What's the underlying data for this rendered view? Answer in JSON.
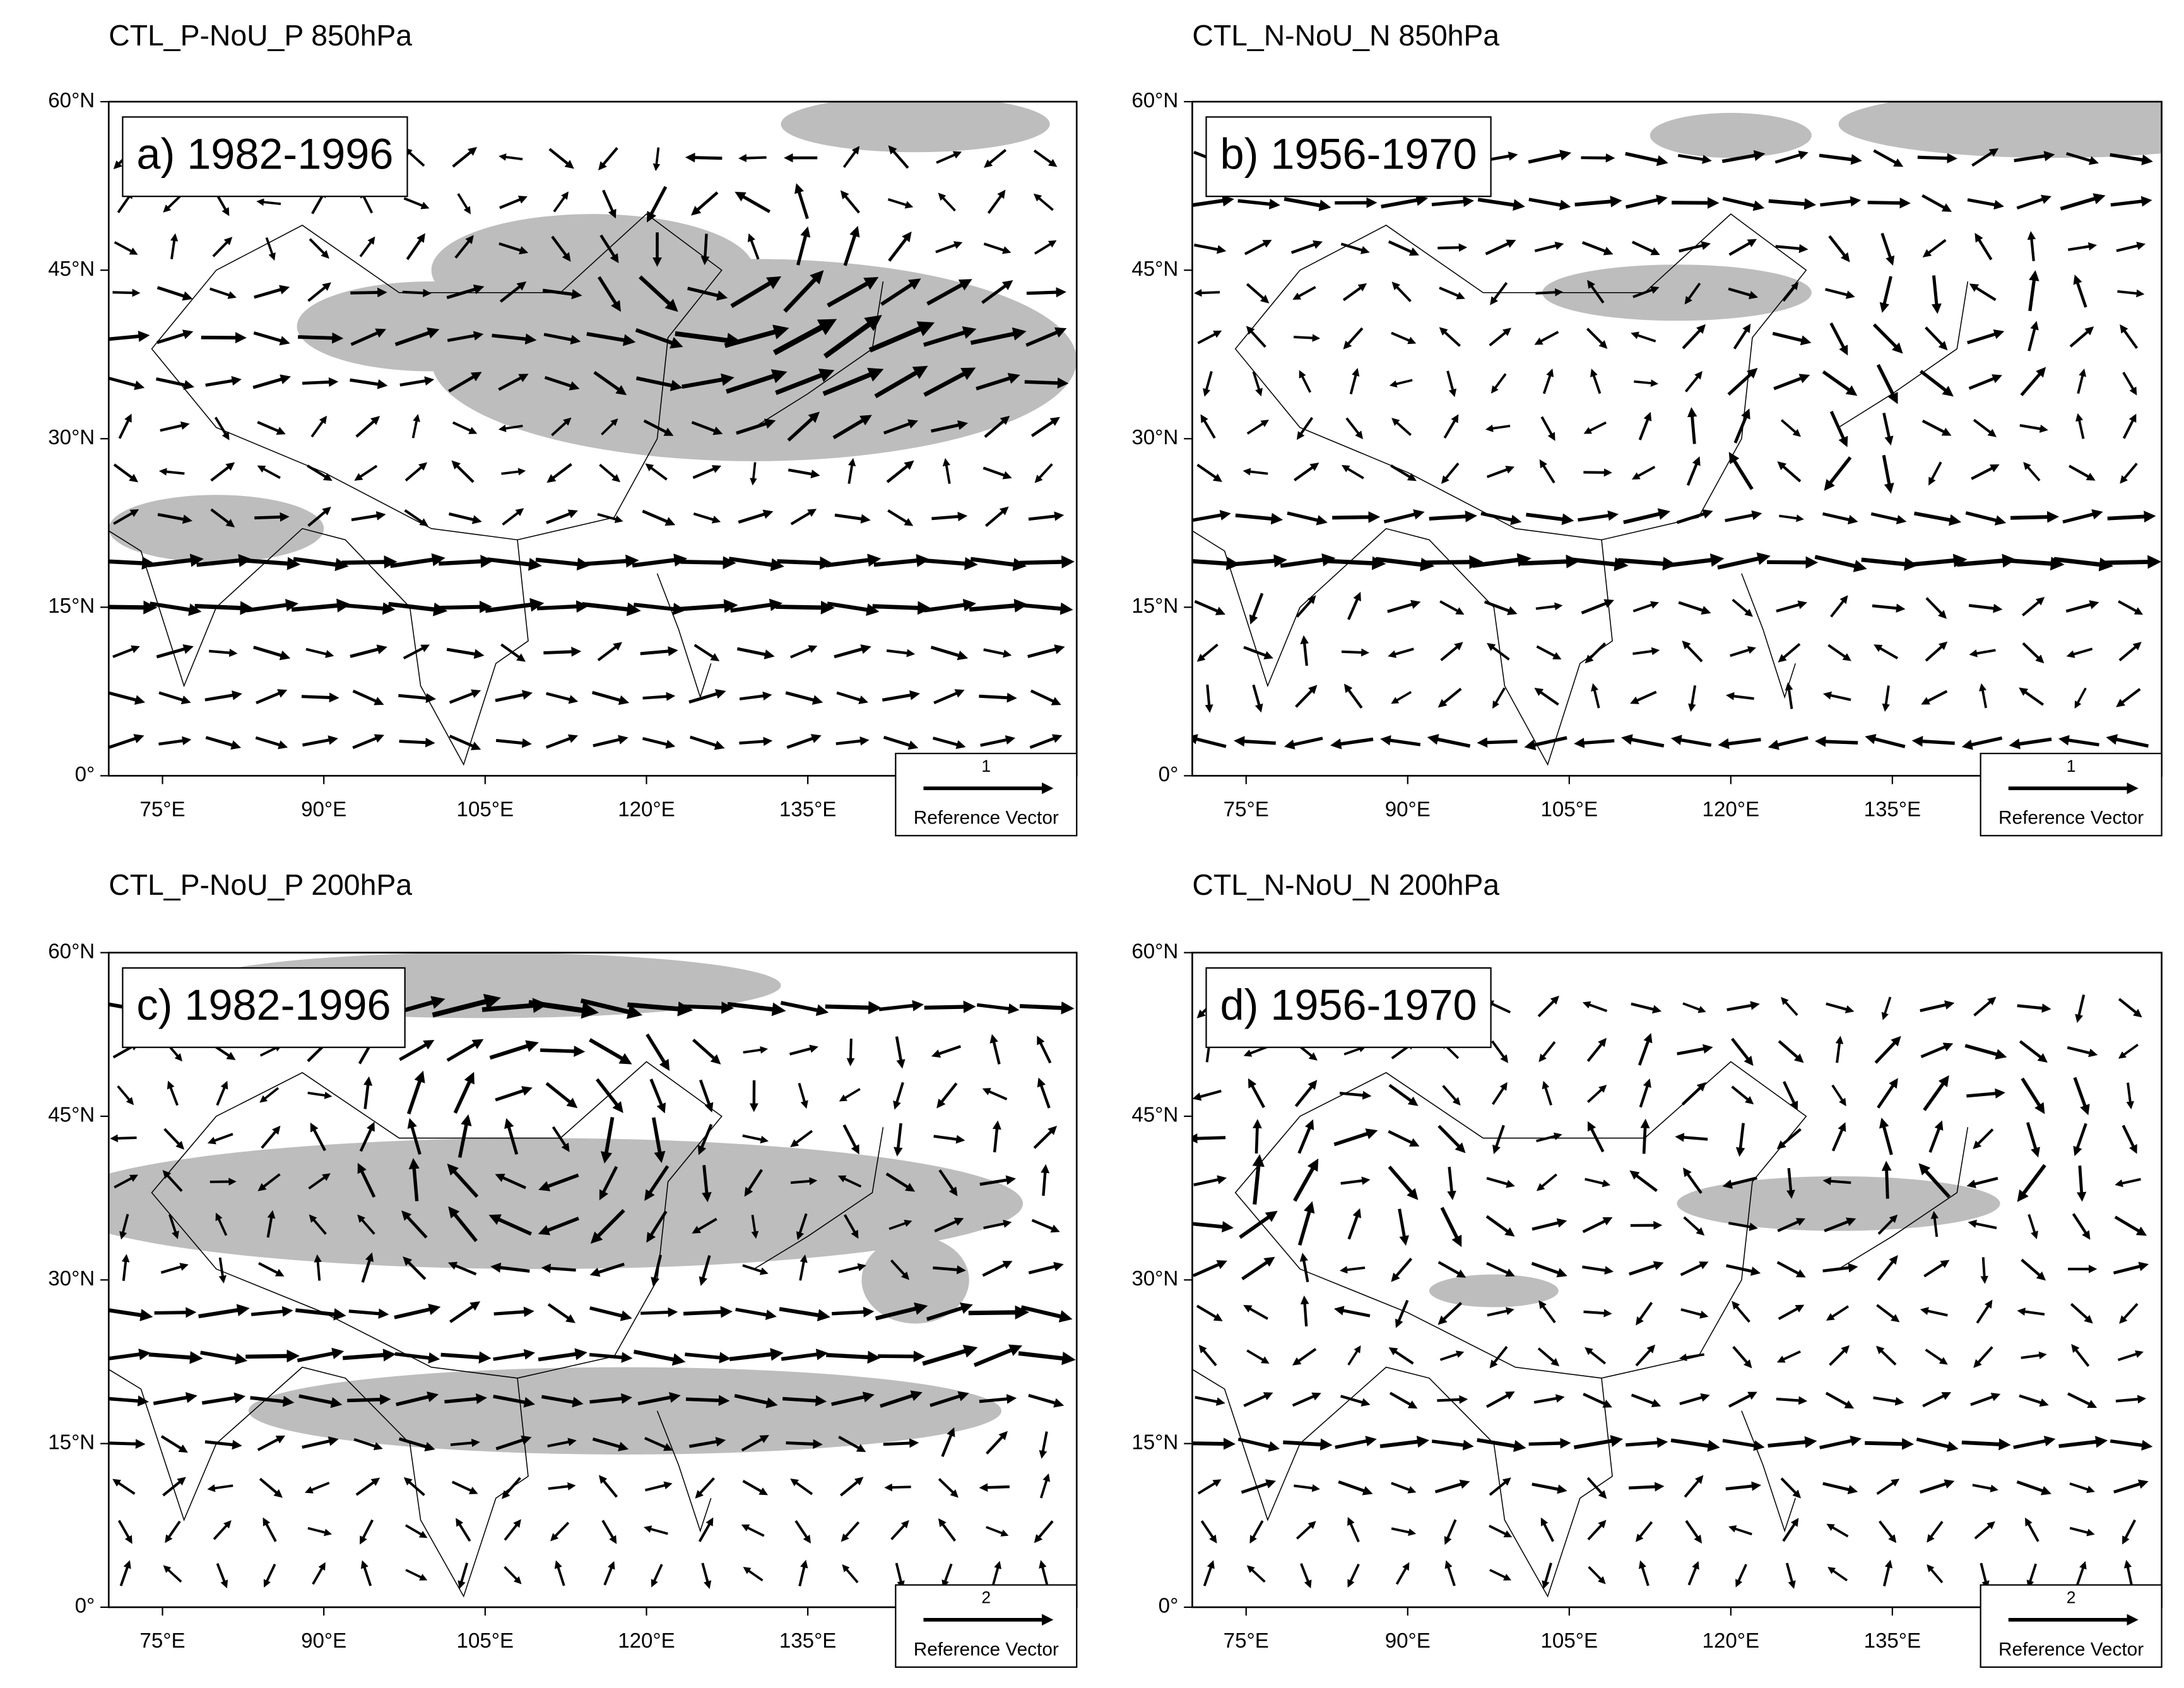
{
  "panels": [
    {
      "title": "CTL_P-NoU_P 850hPa",
      "label": "a) 1982-1996",
      "reference": {
        "value": 1,
        "label": "Reference Vector"
      },
      "xlim": [
        70,
        160
      ],
      "ylim": [
        0,
        60
      ],
      "xticks": [
        {
          "value": 75,
          "label": "75°E"
        },
        {
          "value": 90,
          "label": "90°E"
        },
        {
          "value": 105,
          "label": "105°E"
        },
        {
          "value": 120,
          "label": "120°E"
        },
        {
          "value": 135,
          "label": "135°E"
        }
      ],
      "yticks": [
        {
          "value": 0,
          "label": "0°"
        },
        {
          "value": 15,
          "label": "15°N"
        },
        {
          "value": 30,
          "label": "30°N"
        },
        {
          "value": 45,
          "label": "45°N"
        },
        {
          "value": 60,
          "label": "60°N"
        }
      ]
    },
    {
      "title": "CTL_N-NoU_N 850hPa",
      "label": "b) 1956-1970",
      "reference": {
        "value": 1,
        "label": "Reference Vector"
      },
      "xlim": [
        70,
        160
      ],
      "ylim": [
        0,
        60
      ],
      "xticks": [
        {
          "value": 75,
          "label": "75°E"
        },
        {
          "value": 90,
          "label": "90°E"
        },
        {
          "value": 105,
          "label": "105°E"
        },
        {
          "value": 120,
          "label": "120°E"
        },
        {
          "value": 135,
          "label": "135°E"
        }
      ],
      "yticks": [
        {
          "value": 0,
          "label": "0°"
        },
        {
          "value": 15,
          "label": "15°N"
        },
        {
          "value": 30,
          "label": "30°N"
        },
        {
          "value": 45,
          "label": "45°N"
        },
        {
          "value": 60,
          "label": "60°N"
        }
      ]
    },
    {
      "title": "CTL_P-NoU_P 200hPa",
      "label": "c) 1982-1996",
      "reference": {
        "value": 2,
        "label": "Reference Vector"
      },
      "xlim": [
        70,
        160
      ],
      "ylim": [
        0,
        60
      ],
      "xticks": [
        {
          "value": 75,
          "label": "75°E"
        },
        {
          "value": 90,
          "label": "90°E"
        },
        {
          "value": 105,
          "label": "105°E"
        },
        {
          "value": 120,
          "label": "120°E"
        },
        {
          "value": 135,
          "label": "135°E"
        }
      ],
      "yticks": [
        {
          "value": 0,
          "label": "0°"
        },
        {
          "value": 15,
          "label": "15°N"
        },
        {
          "value": 30,
          "label": "30°N"
        },
        {
          "value": 45,
          "label": "45°N"
        },
        {
          "value": 60,
          "label": "60°N"
        }
      ]
    },
    {
      "title": "CTL_N-NoU_N 200hPa",
      "label": "d) 1956-1970",
      "reference": {
        "value": 2,
        "label": "Reference Vector"
      },
      "xlim": [
        70,
        160
      ],
      "ylim": [
        0,
        60
      ],
      "xticks": [
        {
          "value": 75,
          "label": "75°E"
        },
        {
          "value": 90,
          "label": "90°E"
        },
        {
          "value": 105,
          "label": "105°E"
        },
        {
          "value": 120,
          "label": "120°E"
        },
        {
          "value": 135,
          "label": "135°E"
        }
      ],
      "yticks": [
        {
          "value": 0,
          "label": "0°"
        },
        {
          "value": 15,
          "label": "15°N"
        },
        {
          "value": 30,
          "label": "30°N"
        },
        {
          "value": 45,
          "label": "45°N"
        },
        {
          "value": 60,
          "label": "60°N"
        }
      ]
    }
  ]
}
